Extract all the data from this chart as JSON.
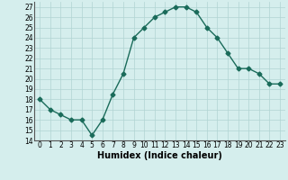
{
  "x": [
    0,
    1,
    2,
    3,
    4,
    5,
    6,
    7,
    8,
    9,
    10,
    11,
    12,
    13,
    14,
    15,
    16,
    17,
    18,
    19,
    20,
    21,
    22,
    23
  ],
  "y": [
    18.0,
    17.0,
    16.5,
    16.0,
    16.0,
    14.5,
    16.0,
    18.5,
    20.5,
    24.0,
    25.0,
    26.0,
    26.5,
    27.0,
    27.0,
    26.5,
    25.0,
    24.0,
    22.5,
    21.0,
    21.0,
    20.5,
    19.5,
    19.5
  ],
  "xlabel": "Humidex (Indice chaleur)",
  "xlim": [
    -0.5,
    23.5
  ],
  "ylim": [
    14,
    27.5
  ],
  "yticks": [
    14,
    15,
    16,
    17,
    18,
    19,
    20,
    21,
    22,
    23,
    24,
    25,
    26,
    27
  ],
  "xtick_labels": [
    "0",
    "1",
    "2",
    "3",
    "4",
    "5",
    "6",
    "7",
    "8",
    "9",
    "10",
    "11",
    "12",
    "13",
    "14",
    "15",
    "16",
    "17",
    "18",
    "19",
    "20",
    "21",
    "22",
    "23"
  ],
  "line_color": "#1a6b5a",
  "marker": "D",
  "marker_size": 2.5,
  "bg_color": "#d5eeed",
  "grid_color": "#b0d4d2",
  "xlabel_fontsize": 7,
  "tick_fontsize": 5.5,
  "linewidth": 1.0
}
